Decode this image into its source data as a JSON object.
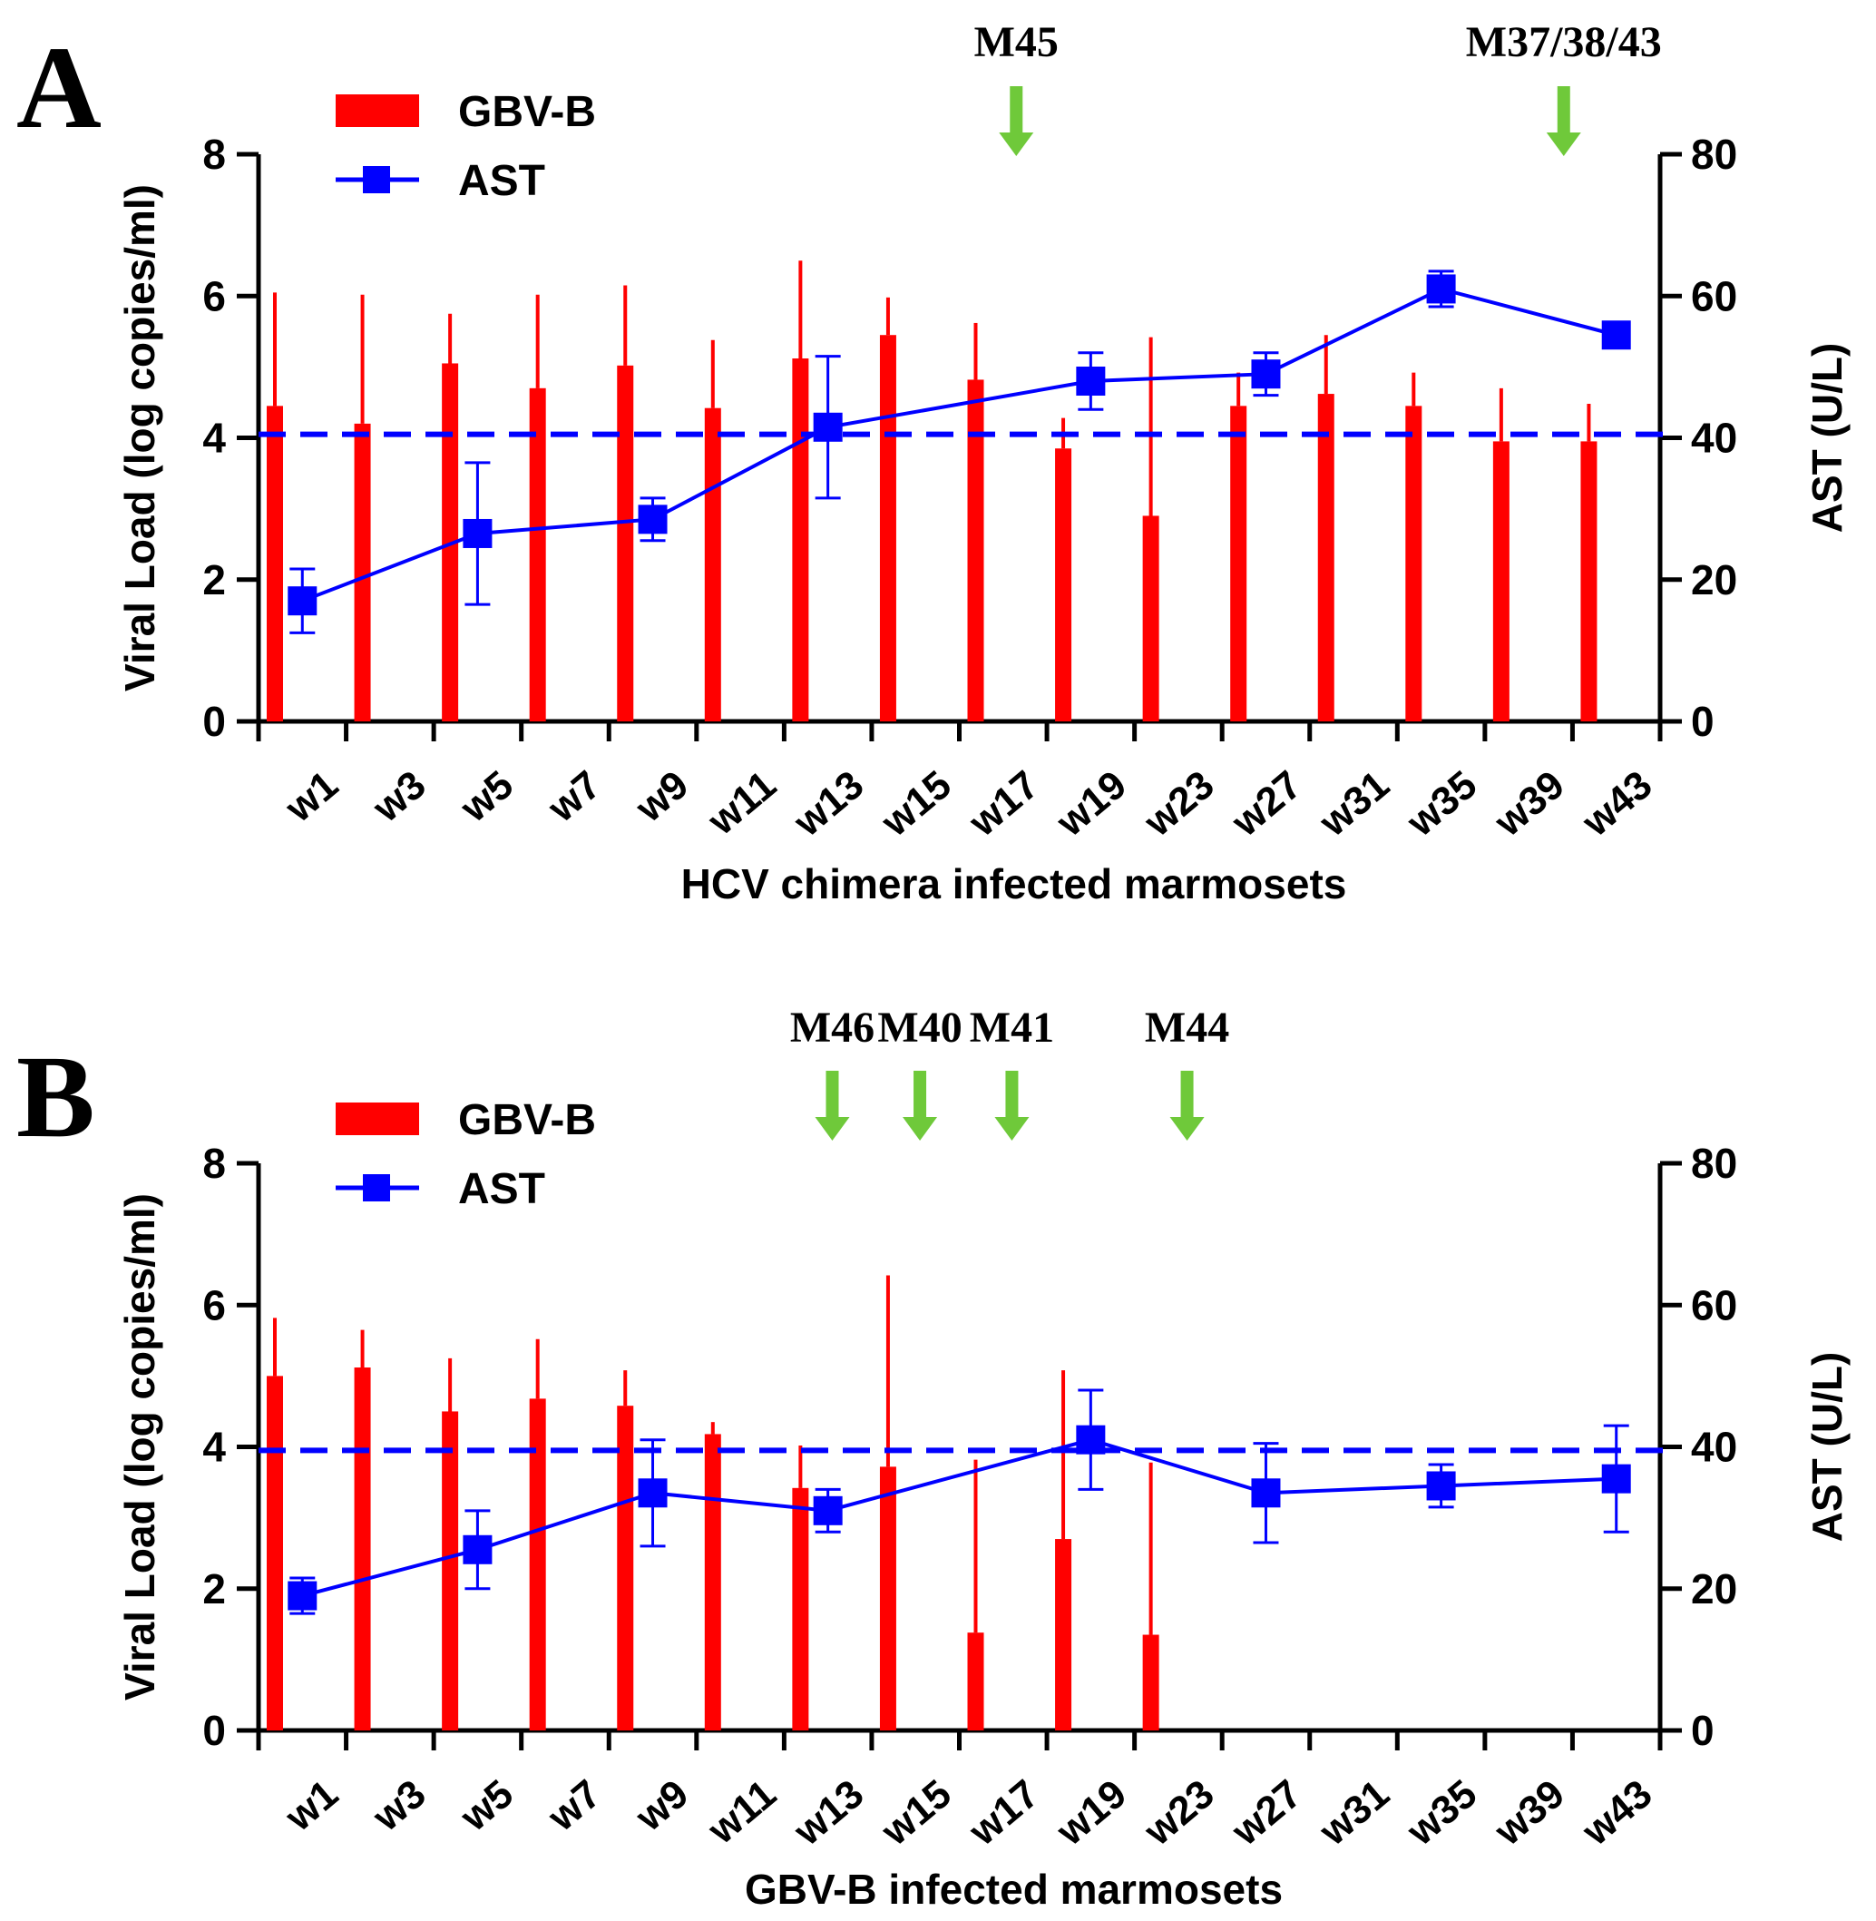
{
  "colors": {
    "bar": "#ff0000",
    "line": "#0000ff",
    "arrow": "#6fc93a",
    "axis": "#000000"
  },
  "chart_data": [
    {
      "type": "bar",
      "panel": "A",
      "xlabel": "HCV chimera infected marmosets",
      "ylabel": "Viral Load (log copies/ml)",
      "y2label": "AST (U/L)",
      "ylim": [
        0,
        8
      ],
      "y2lim": [
        0,
        80
      ],
      "yticks": [
        "0",
        "2",
        "4",
        "6",
        "8"
      ],
      "y2ticks": [
        "0",
        "20",
        "40",
        "60",
        "80"
      ],
      "categories": [
        "w1",
        "w3",
        "w5",
        "w7",
        "w9",
        "w11",
        "w13",
        "w15",
        "w17",
        "w19",
        "w23",
        "w27",
        "w31",
        "w35",
        "w39",
        "w43"
      ],
      "legend": [
        "GBV-B",
        "AST"
      ],
      "reference_line_ast": 40.5,
      "series": [
        {
          "name": "GBV-B",
          "kind": "bar",
          "values": [
            4.45,
            4.2,
            5.05,
            4.7,
            5.02,
            4.42,
            5.12,
            5.45,
            4.82,
            3.85,
            2.9,
            4.45,
            4.62,
            4.45,
            3.95,
            3.95
          ],
          "errors": [
            6.05,
            6.02,
            5.75,
            6.02,
            6.15,
            5.38,
            6.5,
            5.98,
            5.62,
            4.28,
            5.42,
            4.92,
            5.45,
            4.92,
            4.7,
            4.48
          ]
        },
        {
          "name": "AST",
          "kind": "line",
          "points": [
            {
              "x": 0.5,
              "y": 17,
              "low": 12.5,
              "high": 21.5
            },
            {
              "x": 2.5,
              "y": 26.5,
              "low": 16.5,
              "high": 36.5
            },
            {
              "x": 4.5,
              "y": 28.5,
              "low": 25.5,
              "high": 31.5
            },
            {
              "x": 6.5,
              "y": 41.5,
              "low": 31.5,
              "high": 51.5
            },
            {
              "x": 9.5,
              "y": 48,
              "low": 44,
              "high": 52
            },
            {
              "x": 11.5,
              "y": 49,
              "low": 46,
              "high": 52
            },
            {
              "x": 13.5,
              "y": 61,
              "low": 58.5,
              "high": 63.5
            },
            {
              "x": 15.5,
              "y": 54.5,
              "low": 54.5,
              "high": 54.5
            }
          ]
        }
      ],
      "annotations": [
        {
          "label": "M45",
          "x": 8.65
        },
        {
          "label": "M37/38/43",
          "x": 14.9
        }
      ]
    },
    {
      "type": "bar",
      "panel": "B",
      "xlabel": "GBV-B infected marmosets",
      "ylabel": "Viral Load (log copies/ml)",
      "y2label": "AST (U/L)",
      "ylim": [
        0,
        8
      ],
      "y2lim": [
        0,
        80
      ],
      "yticks": [
        "0",
        "2",
        "4",
        "6",
        "8"
      ],
      "y2ticks": [
        "0",
        "20",
        "40",
        "60",
        "80"
      ],
      "categories": [
        "w1",
        "w3",
        "w5",
        "w7",
        "w9",
        "w11",
        "w13",
        "w15",
        "w17",
        "w19",
        "w23",
        "w27",
        "w31",
        "w35",
        "w39",
        "w43"
      ],
      "legend": [
        "GBV-B",
        "AST"
      ],
      "reference_line_ast": 39.5,
      "series": [
        {
          "name": "GBV-B",
          "kind": "bar",
          "values": [
            5.0,
            5.12,
            4.5,
            4.68,
            4.58,
            4.18,
            3.42,
            3.72,
            1.38,
            2.7,
            1.35,
            null,
            null,
            null,
            null,
            null
          ],
          "errors": [
            5.82,
            5.65,
            5.25,
            5.52,
            5.08,
            4.35,
            4.02,
            6.42,
            3.82,
            5.08,
            3.78,
            null,
            null,
            null,
            null,
            null
          ]
        },
        {
          "name": "AST",
          "kind": "line",
          "points": [
            {
              "x": 0.5,
              "y": 19,
              "low": 16.5,
              "high": 21.5
            },
            {
              "x": 2.5,
              "y": 25.5,
              "low": 20,
              "high": 31
            },
            {
              "x": 4.5,
              "y": 33.5,
              "low": 26,
              "high": 41
            },
            {
              "x": 6.5,
              "y": 31,
              "low": 28,
              "high": 34
            },
            {
              "x": 9.5,
              "y": 41,
              "low": 34,
              "high": 48
            },
            {
              "x": 11.5,
              "y": 33.5,
              "low": 26.5,
              "high": 40.5
            },
            {
              "x": 13.5,
              "y": 34.5,
              "low": 31.5,
              "high": 37.5
            },
            {
              "x": 15.5,
              "y": 35.5,
              "low": 28,
              "high": 43
            }
          ]
        }
      ],
      "annotations": [
        {
          "label": "M46",
          "x": 6.55
        },
        {
          "label": "M40",
          "x": 7.55
        },
        {
          "label": "M41",
          "x": 8.6
        },
        {
          "label": "M44",
          "x": 10.6
        }
      ]
    }
  ]
}
